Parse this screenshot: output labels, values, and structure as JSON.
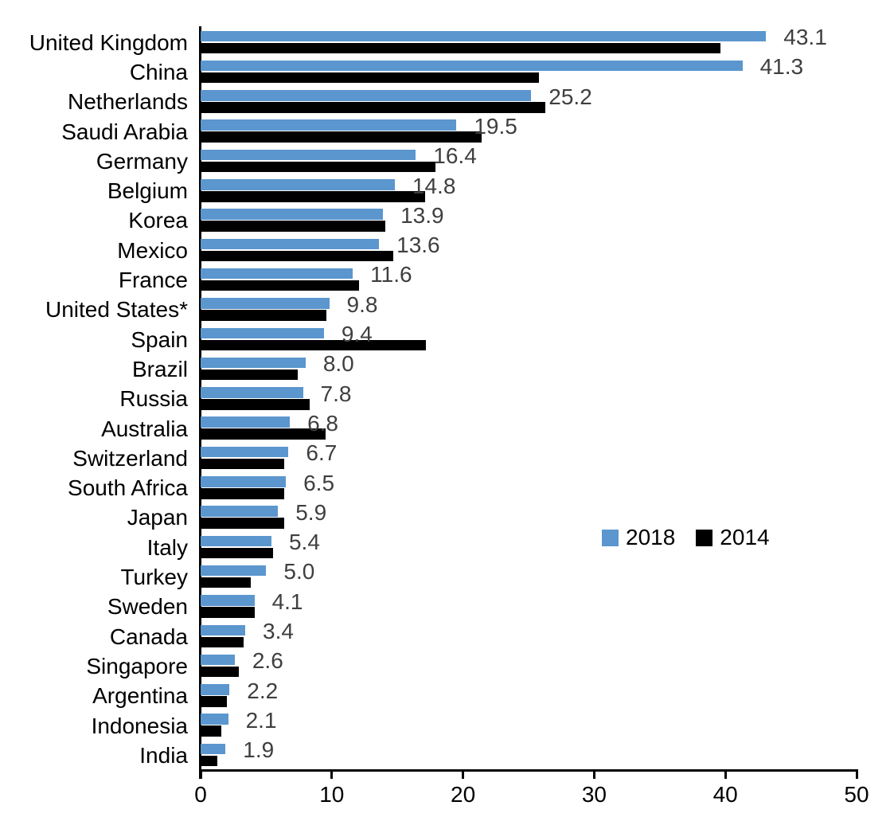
{
  "chart_data": {
    "type": "bar",
    "orientation": "horizontal",
    "title": "",
    "xlabel": "",
    "ylabel": "",
    "xlim": [
      0,
      50
    ],
    "x_ticks": [
      "0",
      "10",
      "20",
      "30",
      "40",
      "50"
    ],
    "grid": false,
    "legend_position": "middle-right",
    "categories": [
      "United Kingdom",
      "China",
      "Netherlands",
      "Saudi Arabia",
      "Germany",
      "Belgium",
      "Korea",
      "Mexico",
      "France",
      "United States*",
      "Spain",
      "Brazil",
      "Russia",
      "Australia",
      "Switzerland",
      "South Africa",
      "Japan",
      "Italy",
      "Turkey",
      "Sweden",
      "Canada",
      "Singapore",
      "Argentina",
      "Indonesia",
      "India"
    ],
    "series": [
      {
        "name": "2018",
        "color": "#5B96CE",
        "values": [
          43.1,
          41.3,
          25.2,
          19.5,
          16.4,
          14.8,
          13.9,
          13.6,
          11.6,
          9.8,
          9.4,
          8.0,
          7.8,
          6.8,
          6.7,
          6.5,
          5.9,
          5.4,
          5.0,
          4.1,
          3.4,
          2.6,
          2.2,
          2.1,
          1.9
        ],
        "data_labels": [
          "43.1",
          "41.3",
          "25.2",
          "19.5",
          "16.4",
          "14.8",
          "13.9",
          "13.6",
          "11.6",
          "9.8",
          "9.4",
          "8.0",
          "7.8",
          "6.8",
          "6.7",
          "6.5",
          "5.9",
          "5.4",
          "5.0",
          "4.1",
          "3.4",
          "2.6",
          "2.2",
          "2.1",
          "1.9"
        ]
      },
      {
        "name": "2014",
        "color": "#000000",
        "values": [
          39.6,
          25.8,
          26.3,
          21.4,
          17.9,
          17.1,
          14.1,
          14.7,
          12.1,
          9.6,
          17.2,
          7.4,
          8.3,
          9.5,
          6.4,
          6.4,
          6.4,
          5.5,
          3.8,
          4.1,
          3.3,
          2.9,
          2.0,
          1.6,
          1.3
        ],
        "data_labels": []
      }
    ]
  },
  "legend": {
    "items": [
      {
        "label": "2018",
        "color": "#5B96CE"
      },
      {
        "label": "2014",
        "color": "#000000"
      }
    ]
  },
  "colors": {
    "series_2018": "#5B96CE",
    "series_2014": "#000000",
    "value_label": "#3f3f3f",
    "axis": "#000000",
    "background": "#ffffff"
  }
}
